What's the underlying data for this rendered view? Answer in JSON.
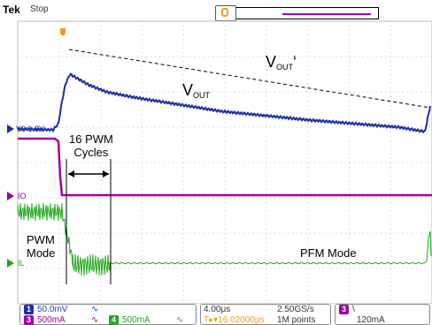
{
  "header": {
    "brand": "Tek",
    "state": "Stop"
  },
  "annotations": {
    "vout_prime_main": "V",
    "vout_prime_sub": "OUT",
    "vout_prime_suffix": "‘",
    "vout_main": "V",
    "vout_sub": "OUT",
    "pwm_cycles_line1": "16 PWM",
    "pwm_cycles_line2": "Cycles",
    "pwm_mode_line1": "PWM",
    "pwm_mode_line2": "Mode",
    "pfm_mode": "PFM Mode"
  },
  "channel_labels": {
    "ch1_offset": "V0 1.8V",
    "io_label": "IO",
    "il_label": "IL"
  },
  "statusbar": {
    "ch1_num": "1",
    "ch1_scale": "50.0mV",
    "ch1_coupling": "∿",
    "ch3_num": "3",
    "ch3_scale": "500mA",
    "ch3_coupling": "∿",
    "ch4_num": "4",
    "ch4_scale": "500mA",
    "ch4_coupling": "∿",
    "timebase": "4.00μs",
    "trig_pos": "T▸▾16.02000μs",
    "sample_rate": "2.50GS/s",
    "record_len": "1M points",
    "trig_ch": "3",
    "trig_slope": "\\",
    "trig_level": "120mA"
  },
  "colors": {
    "ch1": "#1a2fa8",
    "ch3": "#a000a0",
    "ch4": "#22a81e",
    "trigger": "#f39c12",
    "grid": "#b4b4b4"
  }
}
